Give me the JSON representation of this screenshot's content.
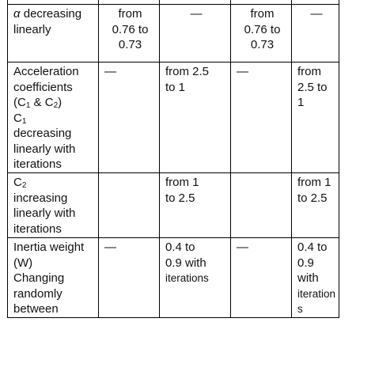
{
  "table": {
    "rows": [
      {
        "label_symbol": "α",
        "label_rest": " decreasing",
        "label_line2": "linearly",
        "cells": [
          [
            "from",
            "0.76 to",
            "0.73"
          ],
          [
            "—"
          ],
          [
            "from",
            "0.76 to",
            "0.73"
          ],
          [
            "—"
          ]
        ]
      },
      {
        "label_lines": [
          "Acceleration",
          "coefficients"
        ],
        "label_c1": "(C",
        "label_c1_sub": "1",
        "label_amp": " & C",
        "label_c2_sub": "2",
        "label_close": ")",
        "label_c_alone": "C",
        "label_c_alone_sub": "1",
        "label_tail": [
          "decreasing",
          "linearly with",
          "iterations"
        ],
        "cells": [
          [
            "—"
          ],
          [
            "from 2.5",
            "to 1"
          ],
          [
            "—"
          ],
          [
            "from",
            "2.5 to",
            "1"
          ]
        ]
      },
      {
        "label_c": "C",
        "label_c_sub": "2",
        "label_tail": [
          "increasing",
          "linearly with",
          "iterations"
        ],
        "cells": [
          [
            ""
          ],
          [
            "from 1",
            "to 2.5"
          ],
          [
            ""
          ],
          [
            "from 1",
            "to 2.5"
          ]
        ]
      },
      {
        "label_lines": [
          "Inertia weight",
          "(W)",
          "Changing",
          "randomly",
          "between"
        ],
        "cells": [
          [
            "—"
          ],
          [
            "0.4 to",
            "0.9 with"
          ],
          [
            "—"
          ],
          [
            "0.4 to",
            "0.9",
            "with"
          ]
        ],
        "cell2_small": "iterations",
        "cell4_small": [
          "iteration",
          "s"
        ]
      }
    ]
  }
}
